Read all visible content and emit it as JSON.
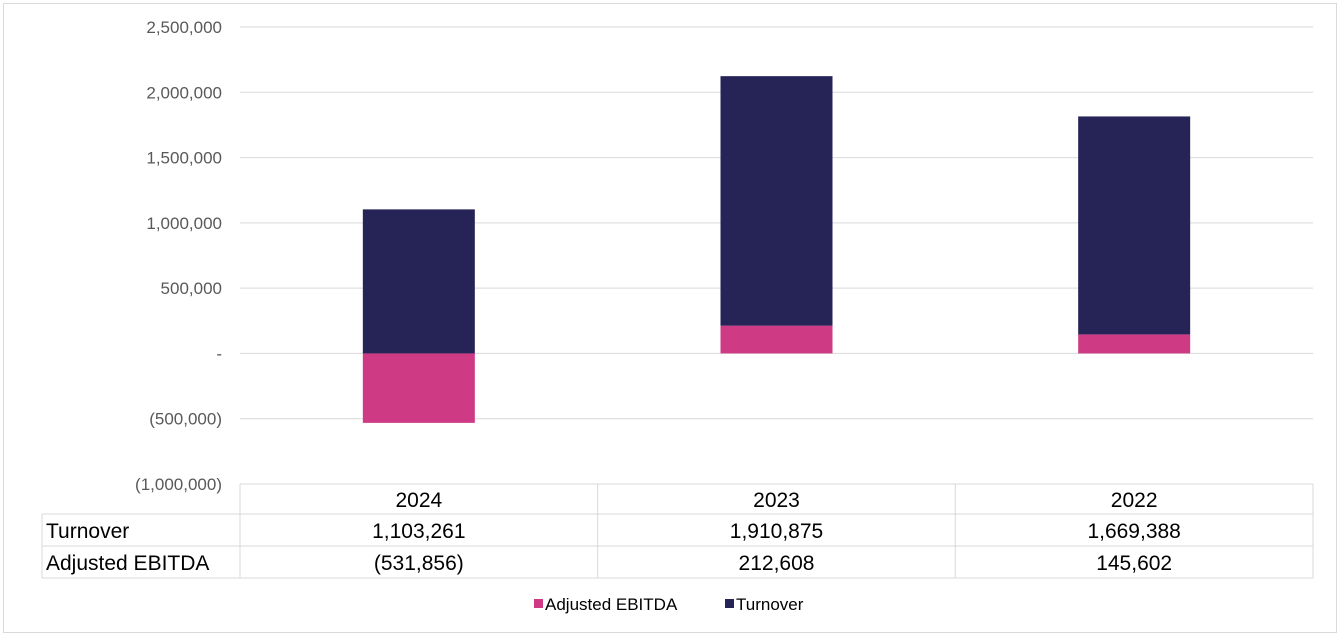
{
  "colors": {
    "turnover": "#262357",
    "ebitda": "#cf3a85",
    "grid": "#d9d9d9"
  },
  "chart_data": {
    "type": "bar",
    "stacked": true,
    "categories": [
      "2024",
      "2023",
      "2022"
    ],
    "series": [
      {
        "name": "Adjusted EBITDA",
        "values": [
          -531856,
          212608,
          145602
        ],
        "display": [
          "(531,856)",
          "212,608",
          "145,602"
        ]
      },
      {
        "name": "Turnover",
        "values": [
          1103261,
          1910875,
          1669388
        ],
        "display": [
          "1,103,261",
          "1,910,875",
          "1,669,388"
        ]
      }
    ],
    "ylim": [
      -1000000,
      2500000
    ],
    "yticks": [
      2500000,
      2000000,
      1500000,
      1000000,
      500000,
      0,
      -500000,
      -1000000
    ],
    "ytick_labels": [
      "2,500,000",
      "2,000,000",
      "1,500,000",
      "1,000,000",
      "500,000",
      "-",
      "(500,000)",
      "(1,000,000)"
    ],
    "table": {
      "row_labels": [
        "Turnover",
        "Adjusted EBITDA"
      ]
    },
    "legend": {
      "position": "bottom",
      "items": [
        "Adjusted EBITDA",
        "Turnover"
      ]
    },
    "title": "",
    "xlabel": "",
    "ylabel": ""
  }
}
